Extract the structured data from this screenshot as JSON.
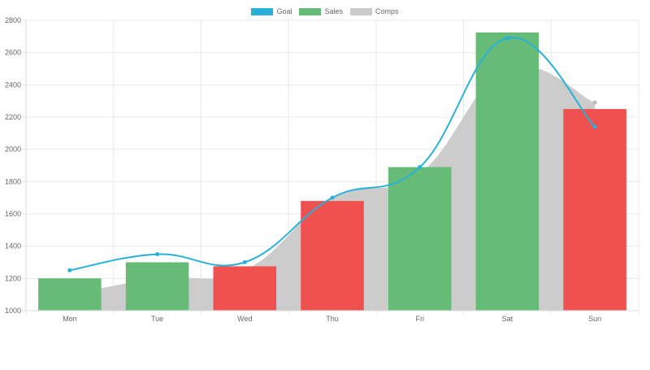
{
  "chart_data": {
    "type": "bar",
    "title": "",
    "xlabel": "",
    "ylabel": "",
    "categories": [
      "Mon",
      "Tue",
      "Wed",
      "Thu",
      "Fri",
      "Sat",
      "Sun"
    ],
    "ylim": [
      1000,
      2800
    ],
    "yticks": [
      1000,
      1200,
      1400,
      1600,
      1800,
      2000,
      2200,
      2400,
      2600,
      2800
    ],
    "grid": true,
    "legend_position": "top",
    "series": [
      {
        "name": "Goal",
        "type": "line",
        "color": "#29b0d9",
        "values": [
          1250,
          1350,
          1300,
          1700,
          1890,
          2690,
          2140
        ]
      },
      {
        "name": "Sales",
        "type": "bar",
        "color": "#66bb77",
        "values": [
          1200,
          1300,
          1275,
          1680,
          1890,
          2725,
          2250
        ],
        "bar_colors": [
          "#66bb77",
          "#66bb77",
          "#ef5050",
          "#ef5050",
          "#66bb77",
          "#66bb77",
          "#ef5050"
        ]
      },
      {
        "name": "Comps",
        "type": "area",
        "color": "#cccccc",
        "values": [
          1100,
          1200,
          1250,
          1700,
          1850,
          2500,
          2290
        ]
      }
    ]
  },
  "legend": [
    {
      "label": "Goal",
      "color": "#29b0d9"
    },
    {
      "label": "Sales",
      "color": "#66bb77"
    },
    {
      "label": "Comps",
      "color": "#cccccc"
    }
  ]
}
